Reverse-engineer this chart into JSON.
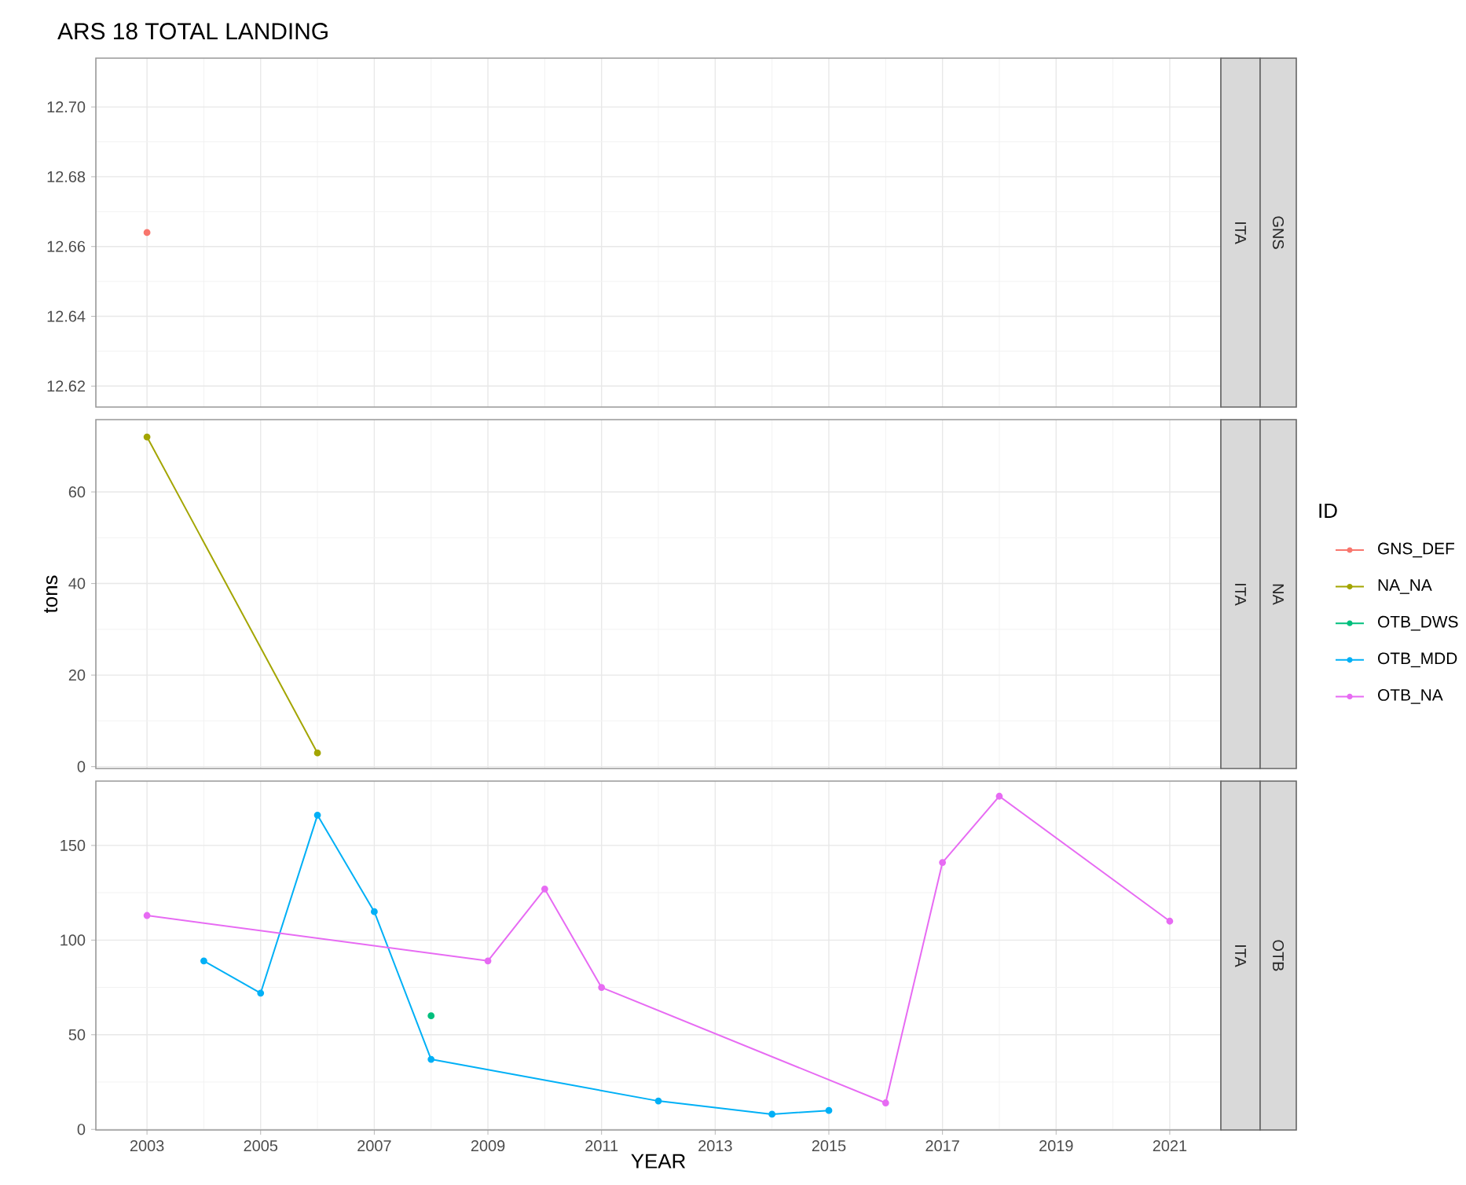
{
  "chart_data": [
    {
      "type": "line",
      "title": "ARS  18 TOTAL LANDING",
      "annotations": [
        "ITA",
        "GNS"
      ],
      "xlim": [
        2002.1,
        2021.9
      ],
      "ylim": [
        12.614,
        12.714
      ],
      "xticks": [
        2003,
        2005,
        2007,
        2009,
        2011,
        2013,
        2015,
        2017,
        2019,
        2021
      ],
      "yticks": [
        12.62,
        12.64,
        12.66,
        12.68,
        {
          "value": 12.7,
          "label": "12.70"
        }
      ],
      "tick_labels": "y",
      "grid": true,
      "marker": "circle",
      "line_style": "solid",
      "series": [
        {
          "name": "GNS_DEF",
          "color": "#f8766d",
          "x": [
            2003
          ],
          "values": [
            12.664
          ]
        }
      ]
    },
    {
      "type": "line",
      "ylabel": "tons",
      "legend": "right",
      "legend_title": "ID",
      "annotations": [
        "ITA",
        "NA"
      ],
      "xlim": [
        2002.1,
        2021.9
      ],
      "ylim": [
        -0.4,
        75.8
      ],
      "xticks": [
        2003,
        2005,
        2007,
        2009,
        2011,
        2013,
        2015,
        2017,
        2019,
        2021
      ],
      "yticks": [
        0,
        20,
        40,
        60
      ],
      "tick_labels": "y",
      "grid": true,
      "marker": "circle",
      "line_style": "solid",
      "series": [
        {
          "name": "NA_NA",
          "color": "#a3a500",
          "x": [
            2003,
            2006
          ],
          "values": [
            72,
            3
          ]
        }
      ]
    },
    {
      "type": "line",
      "xlabel": "YEAR",
      "annotations": [
        "ITA",
        "OTB"
      ],
      "xlim": [
        2002.1,
        2021.9
      ],
      "ylim": [
        -0.3,
        184
      ],
      "xticks": [
        2003,
        2005,
        2007,
        2009,
        2011,
        2013,
        2015,
        2017,
        2019,
        2021
      ],
      "yticks": [
        0,
        50,
        100,
        150
      ],
      "grid": true,
      "marker": "circle",
      "line_style": "solid",
      "series": [
        {
          "name": "OTB_DWS",
          "color": "#00bf7d",
          "x": [
            2008
          ],
          "values": [
            60
          ]
        },
        {
          "name": "OTB_MDD",
          "color": "#00b0f6",
          "x": [
            2004,
            2005,
            2006,
            2007,
            2008,
            2012,
            2014,
            2015
          ],
          "values": [
            89,
            72,
            166,
            115,
            37,
            15,
            8,
            10
          ]
        },
        {
          "name": "OTB_NA",
          "color": "#e76bf3",
          "x": [
            2003,
            2009,
            2010,
            2011,
            2016,
            2017,
            2018,
            2021
          ],
          "values": [
            113,
            89,
            127,
            75,
            14,
            141,
            176,
            110
          ]
        }
      ]
    }
  ]
}
